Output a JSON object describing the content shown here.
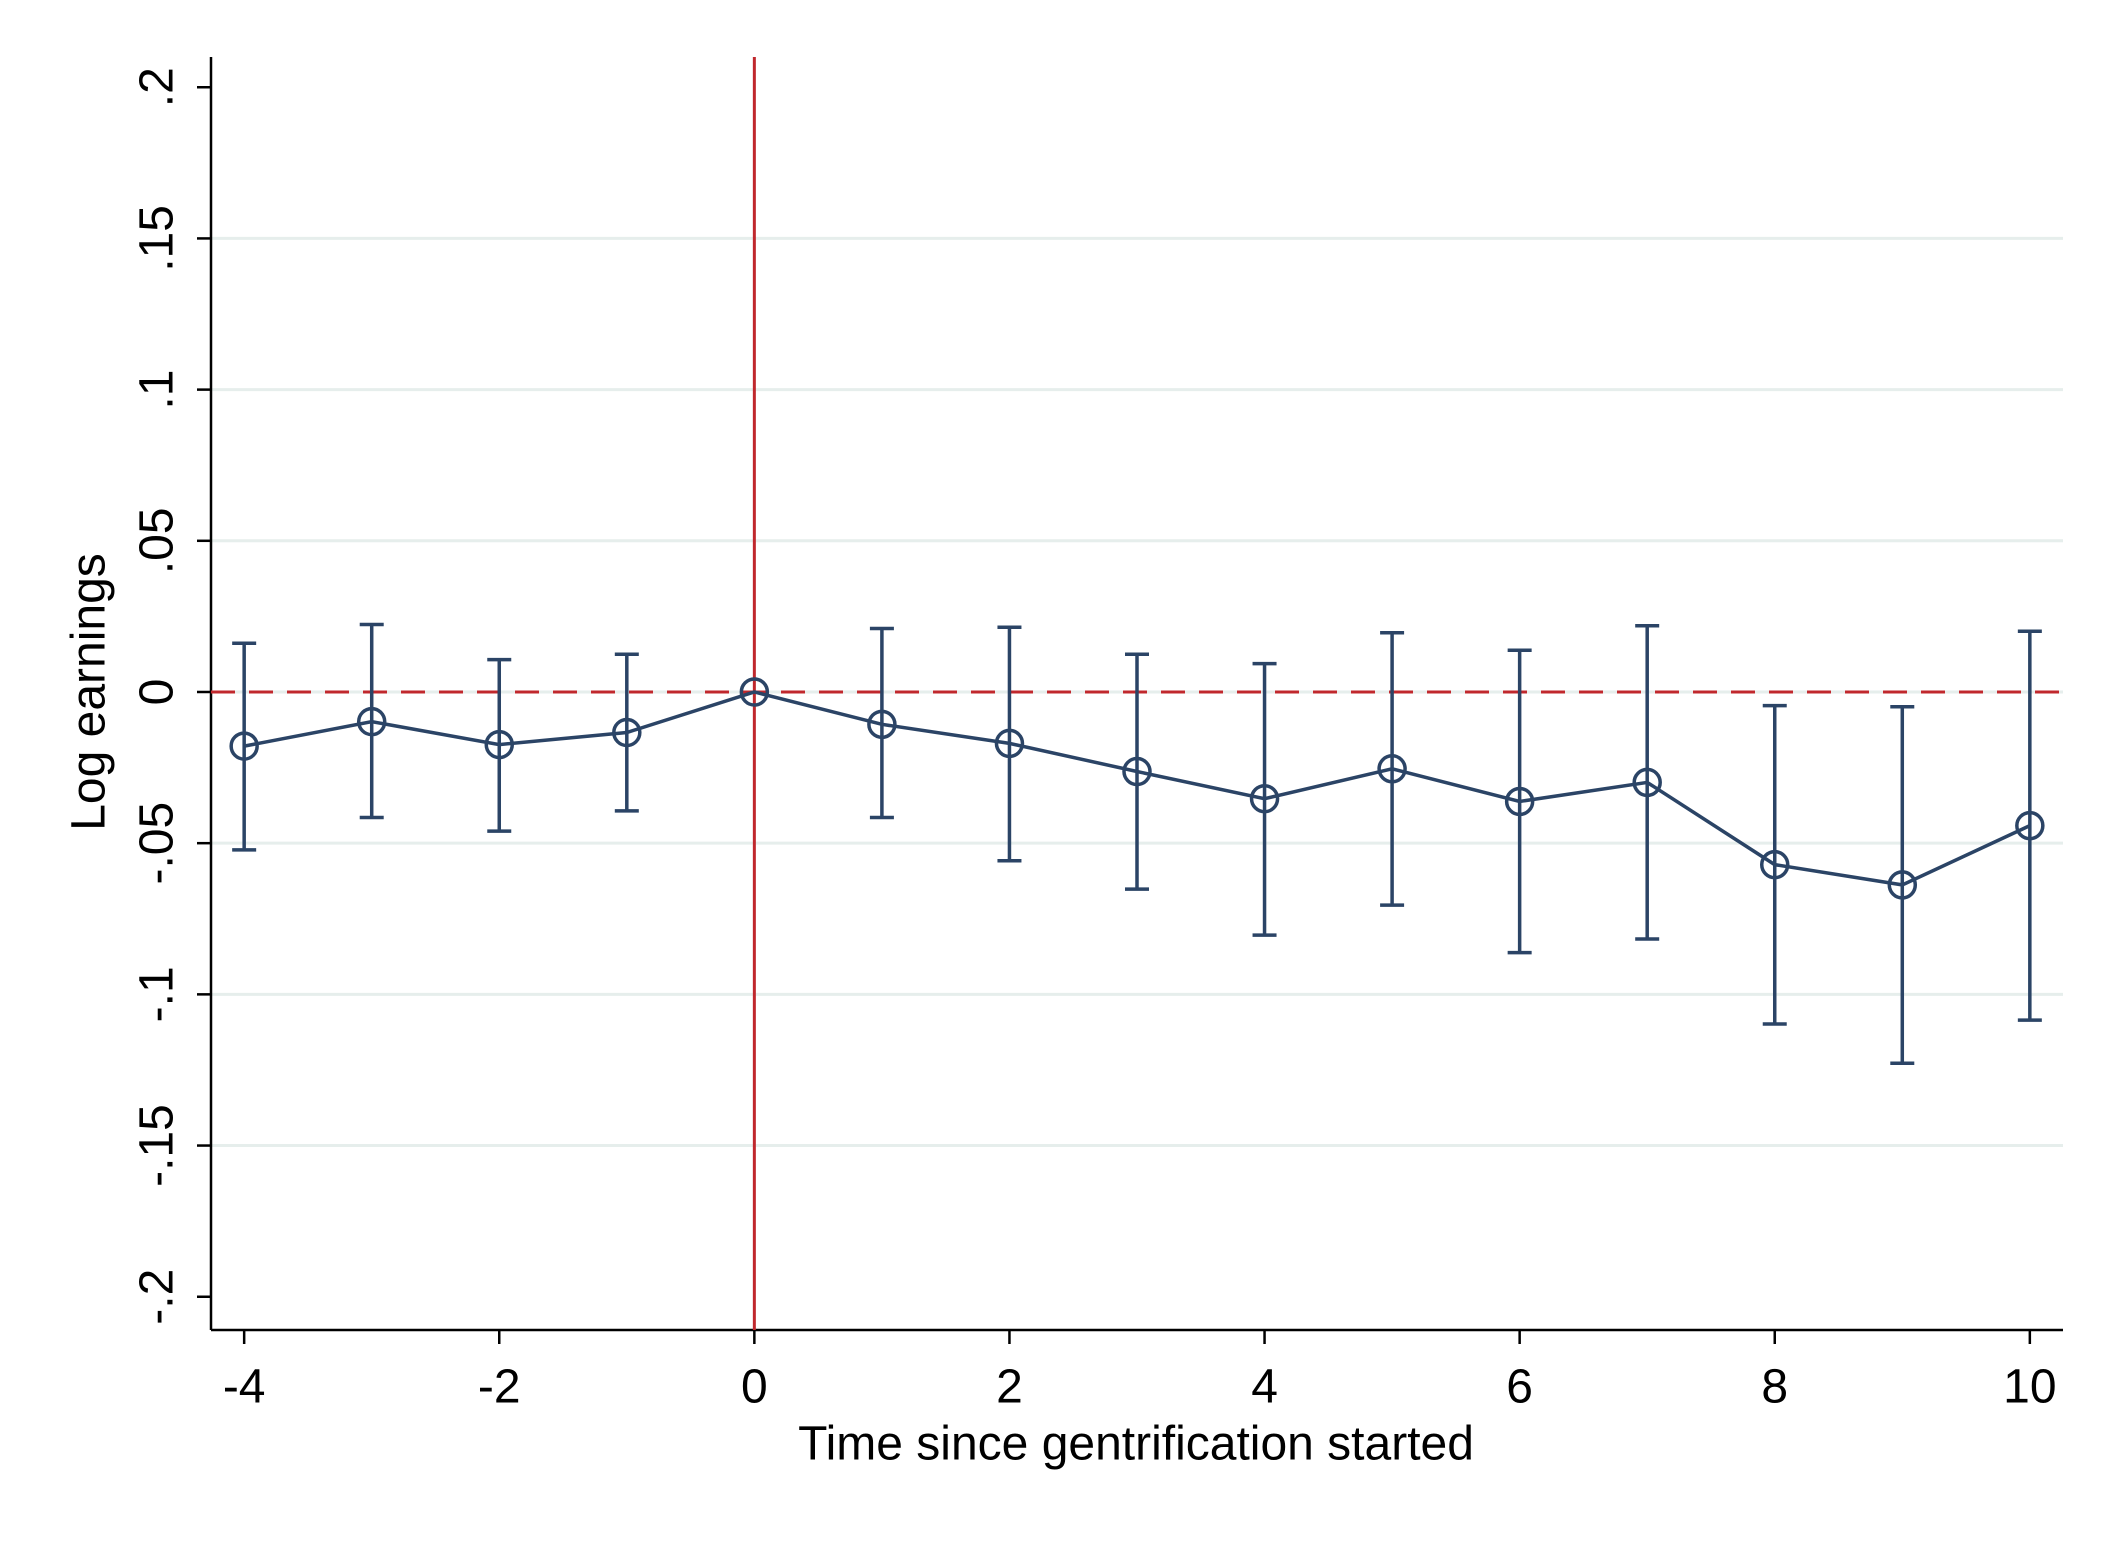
{
  "chart_data": {
    "type": "errorbar-line",
    "x_label": "Time since gentrification started",
    "y_label": "Log earnings",
    "x": [
      -4,
      -3,
      -2,
      -1,
      0,
      1,
      2,
      3,
      4,
      5,
      6,
      7,
      8,
      9,
      10
    ],
    "series": [
      {
        "color": "#2b4466",
        "values": [
          -0.0179,
          -0.0098,
          -0.0174,
          -0.0134,
          0,
          -0.0107,
          -0.017,
          -0.0263,
          -0.0353,
          -0.0254,
          -0.0362,
          -0.0299,
          -0.0571,
          -0.0638,
          -0.0442
        ],
        "ci_lower": [
          -0.0522,
          -0.0415,
          -0.046,
          -0.0393,
          null,
          -0.0415,
          -0.0558,
          -0.0652,
          -0.0804,
          -0.0705,
          -0.0862,
          -0.0817,
          -0.1098,
          -0.1228,
          -0.1085
        ],
        "ci_upper": [
          0.0161,
          0.0223,
          0.0107,
          0.0125,
          null,
          0.021,
          0.0214,
          0.0125,
          0.0094,
          0.0196,
          0.0138,
          0.0219,
          -0.0045,
          -0.0049,
          0.0201
        ]
      }
    ],
    "xlim": [
      -4.26,
      10.26
    ],
    "xticks": [
      -4,
      -2,
      0,
      2,
      4,
      6,
      8,
      10
    ],
    "ylim": [
      -0.211,
      0.21
    ],
    "yticks": [
      {
        "value": -0.2,
        "label": "-.2"
      },
      {
        "value": -0.15,
        "label": "-.15"
      },
      {
        "value": -0.1,
        "label": "-.1"
      },
      {
        "value": -0.05,
        "label": "-.05"
      },
      0,
      {
        "value": 0.05,
        "label": ".05"
      },
      {
        "value": 0.1,
        "label": ".1"
      },
      {
        "value": 0.15,
        "label": ".15"
      },
      {
        "value": 0.2,
        "label": ".2"
      }
    ],
    "grid": true,
    "grid_color": "#e6eeec",
    "reference_color": "#c0282d",
    "vline": 0,
    "hline": 0
  }
}
